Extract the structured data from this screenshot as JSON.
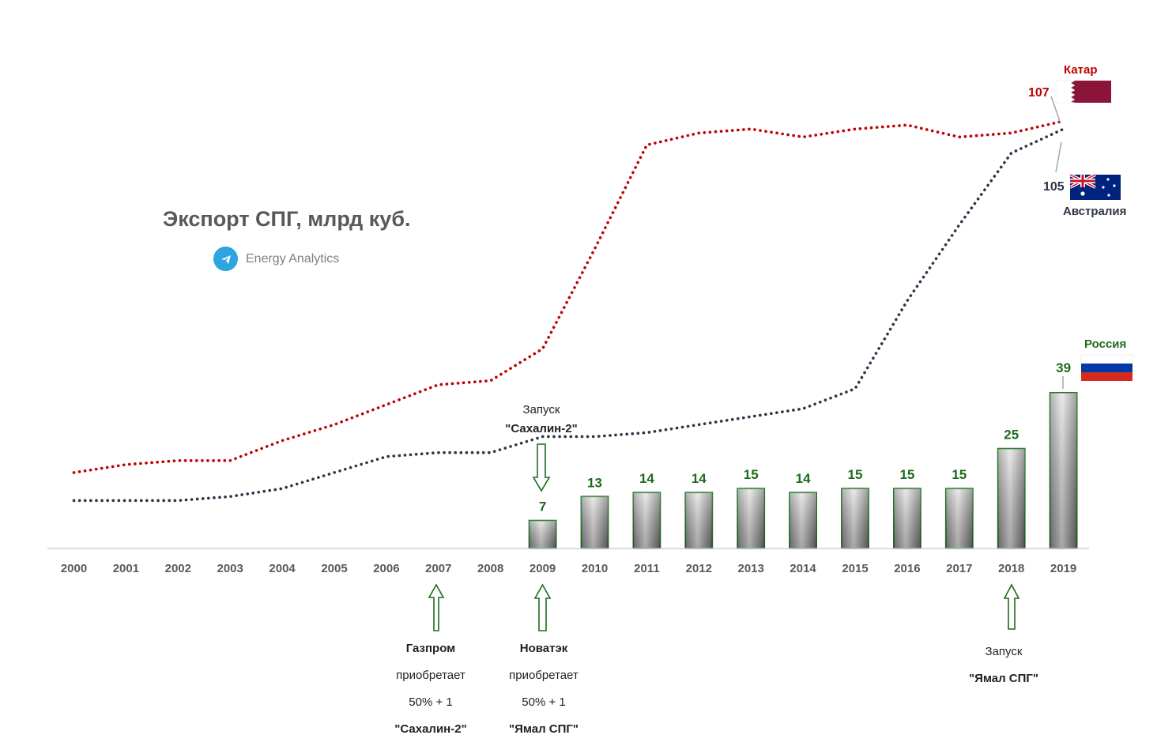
{
  "title": "Экспорт СПГ, млрд куб.",
  "brand": "Energy Analytics",
  "chart_data": {
    "type": "bar+line",
    "categories": [
      "2000",
      "2001",
      "2002",
      "2003",
      "2004",
      "2005",
      "2006",
      "2007",
      "2008",
      "2009",
      "2010",
      "2011",
      "2012",
      "2013",
      "2014",
      "2015",
      "2016",
      "2017",
      "2018",
      "2019"
    ],
    "bars": {
      "name": "Россия",
      "values": [
        null,
        null,
        null,
        null,
        null,
        null,
        null,
        null,
        null,
        7,
        13,
        14,
        14,
        15,
        14,
        15,
        15,
        15,
        25,
        39
      ],
      "labels": [
        "",
        "",
        "",
        "",
        "",
        "",
        "",
        "",
        "",
        "7",
        "13",
        "14",
        "14",
        "15",
        "14",
        "15",
        "15",
        "15",
        "25",
        "39"
      ],
      "color": "#808080",
      "border": "#1e6b1e"
    },
    "series": [
      {
        "name": "Катар",
        "end_label": "107",
        "color": "#c00000",
        "values": [
          19,
          21,
          22,
          22,
          27,
          31,
          36,
          41,
          42,
          50,
          75,
          101,
          104,
          105,
          103,
          105,
          106,
          103,
          104,
          107
        ]
      },
      {
        "name": "Австралия",
        "end_label": "105",
        "color": "#2e3447",
        "values": [
          12,
          12,
          12,
          13,
          15,
          19,
          23,
          24,
          24,
          28,
          28,
          29,
          31,
          33,
          35,
          40,
          62,
          81,
          99,
          105
        ]
      }
    ],
    "ylim": [
      0,
      110
    ]
  },
  "labels": {
    "qatar": "Катар",
    "qatar_value": "107",
    "australia": "Австралия",
    "australia_value": "105",
    "russia": "Россия",
    "russia_value": "39"
  },
  "annotations": {
    "sakhalin_launch": {
      "line1": "Запуск",
      "line2": "\"Сахалин-2\""
    },
    "gazprom": {
      "line1": "Газпром",
      "line2": "приобретает",
      "line3": "50% + 1",
      "line4": "\"Сахалин-2\""
    },
    "novatek": {
      "line1": "Новатэк",
      "line2": "приобретает",
      "line3": "50% + 1",
      "line4": "\"Ямал СПГ\""
    },
    "yamal_launch": {
      "line1": "Запуск",
      "line2": "\"Ямал СПГ\""
    }
  },
  "colors": {
    "qatar": "#c00000",
    "australia": "#2e3447",
    "russia_text": "#1e6b1e",
    "arrow": "#1e6b1e"
  }
}
